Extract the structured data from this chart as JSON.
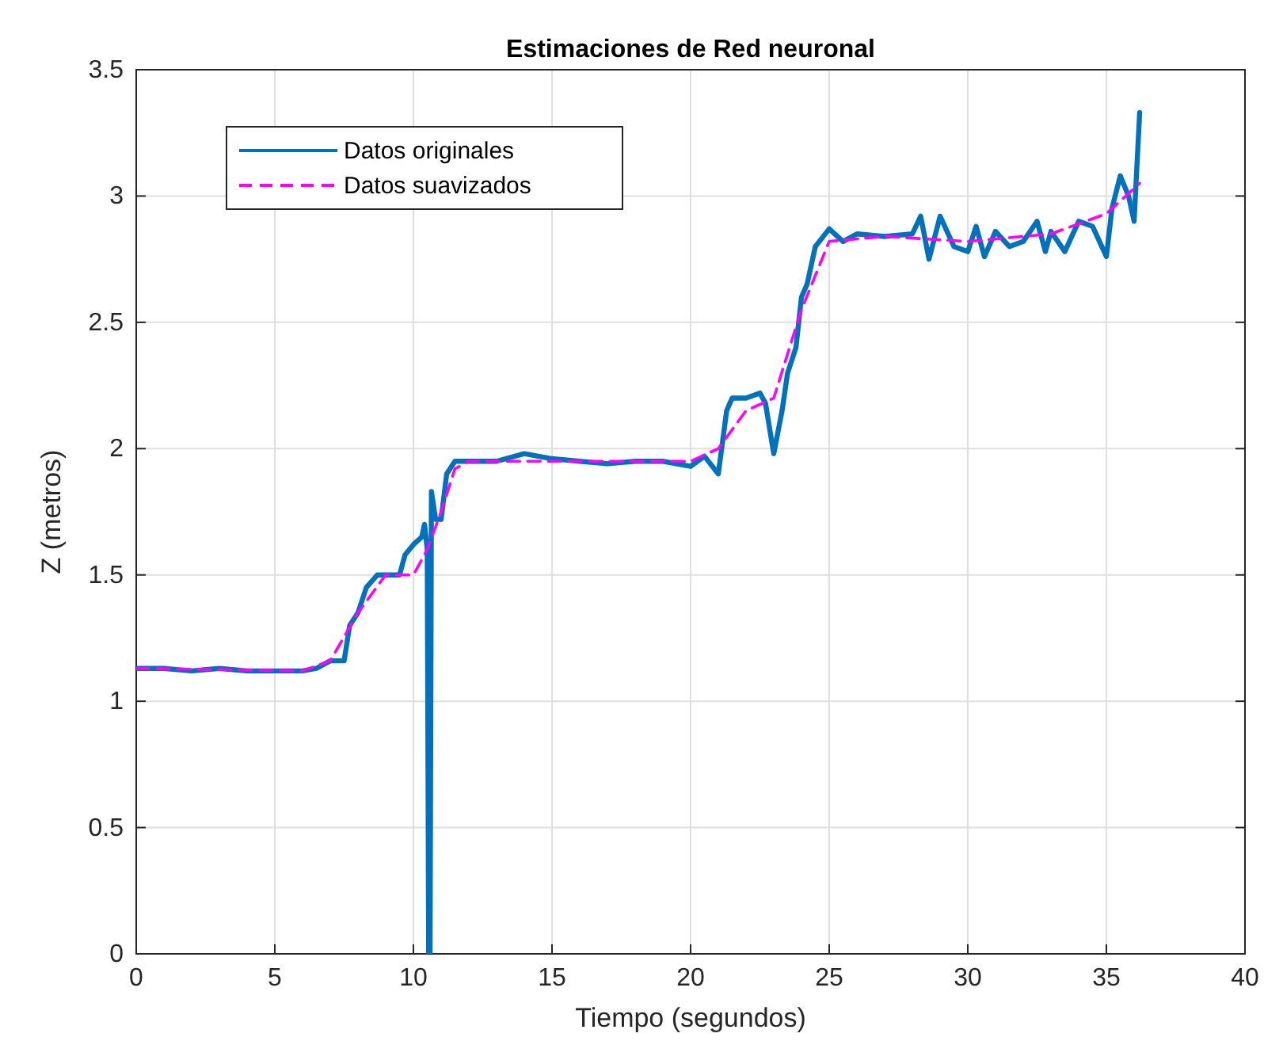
{
  "chart_data": {
    "type": "line",
    "title": "Estimaciones de Red neuronal",
    "xlabel": "Tiempo (segundos)",
    "ylabel": "Z (metros)",
    "xlim": [
      0,
      40
    ],
    "xticks": [
      0,
      5,
      10,
      15,
      20,
      25,
      30,
      35,
      40
    ],
    "ylim": [
      0,
      3.5
    ],
    "yticks": [
      0,
      0.5,
      1,
      1.5,
      2,
      2.5,
      3,
      3.5
    ],
    "grid": true,
    "legend": "top left",
    "series": [
      {
        "name": "Datos originales",
        "color": "#0072bd",
        "line_style": "solid",
        "x": [
          0,
          1,
          2,
          3,
          4,
          5,
          6,
          6.5,
          7,
          7.5,
          7.7,
          8,
          8.3,
          8.7,
          9,
          9.5,
          9.7,
          10,
          10.3,
          10.4,
          10.5,
          10.55,
          10.6,
          10.65,
          10.8,
          11,
          11.2,
          11.5,
          12,
          13,
          14,
          15,
          16,
          17,
          18,
          19,
          20,
          20.5,
          21,
          21.3,
          21.5,
          22,
          22.5,
          22.7,
          23,
          23.3,
          23.5,
          23.8,
          24,
          24.2,
          24.5,
          25,
          25.5,
          26,
          27,
          28,
          28.3,
          28.6,
          29,
          29.5,
          30,
          30.3,
          30.6,
          31,
          31.5,
          32,
          32.5,
          32.8,
          33,
          33.5,
          34,
          34.5,
          35,
          35.2,
          35.5,
          35.8,
          36,
          36.2
        ],
        "values": [
          1.13,
          1.13,
          1.12,
          1.13,
          1.12,
          1.12,
          1.12,
          1.13,
          1.16,
          1.16,
          1.3,
          1.35,
          1.45,
          1.5,
          1.5,
          1.5,
          1.58,
          1.62,
          1.65,
          1.7,
          1.6,
          0,
          0,
          1.83,
          1.72,
          1.72,
          1.9,
          1.95,
          1.95,
          1.95,
          1.98,
          1.96,
          1.95,
          1.94,
          1.95,
          1.95,
          1.93,
          1.97,
          1.9,
          2.15,
          2.2,
          2.2,
          2.22,
          2.18,
          1.98,
          2.15,
          2.3,
          2.4,
          2.6,
          2.65,
          2.8,
          2.87,
          2.82,
          2.85,
          2.84,
          2.85,
          2.92,
          2.75,
          2.92,
          2.8,
          2.78,
          2.88,
          2.76,
          2.86,
          2.8,
          2.82,
          2.9,
          2.78,
          2.86,
          2.78,
          2.9,
          2.88,
          2.76,
          2.95,
          3.08,
          3.0,
          2.9,
          3.33
        ]
      },
      {
        "name": "Datos suavizados",
        "color": "#ff00ff",
        "line_style": "dashed",
        "x": [
          0,
          6,
          7,
          8,
          9,
          10,
          10.5,
          11,
          11.5,
          12,
          20,
          21,
          22,
          23,
          24,
          25,
          27,
          30,
          33,
          35,
          36.2
        ],
        "values": [
          1.13,
          1.12,
          1.16,
          1.35,
          1.5,
          1.5,
          1.6,
          1.75,
          1.92,
          1.95,
          1.95,
          2.0,
          2.15,
          2.2,
          2.55,
          2.82,
          2.84,
          2.82,
          2.85,
          2.93,
          3.05
        ]
      }
    ]
  }
}
